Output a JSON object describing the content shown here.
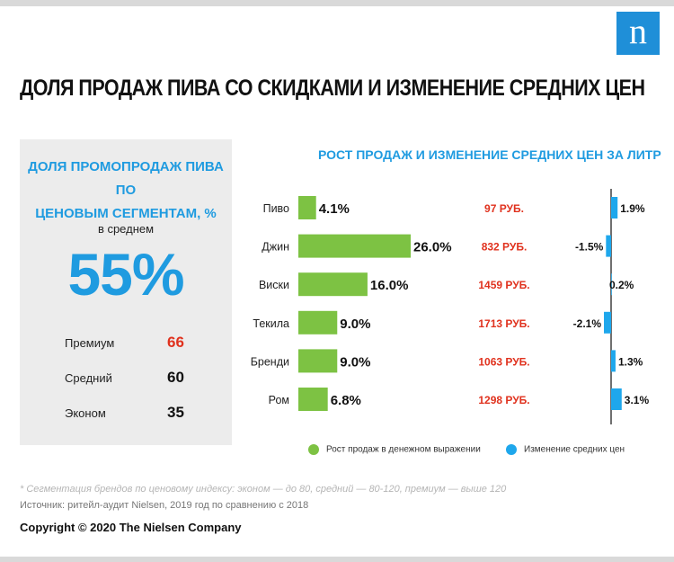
{
  "logo": {
    "letter": "n"
  },
  "title": "ДОЛЯ ПРОДАЖ ПИВА СО СКИДКАМИ И ИЗМЕНЕНИЕ СРЕДНИХ ЦЕН",
  "left_panel": {
    "title_line1": "ДОЛЯ ПРОМОПРОДАЖ ПИВА ПО",
    "title_line2": "ЦЕНОВЫМ СЕГМЕНТАМ, %",
    "avg_label": "в среднем",
    "avg_value": "55%",
    "segments": [
      {
        "name": "Премиум",
        "value": "66",
        "color": "#e0321e"
      },
      {
        "name": "Средний",
        "value": "60",
        "color": "#111111"
      },
      {
        "name": "Эконом",
        "value": "35",
        "color": "#111111"
      }
    ]
  },
  "right_title": "РОСТ ПРОДАЖ И ИЗМЕНЕНИЕ СРЕДНИХ ЦЕН ЗА ЛИТР",
  "chart_data": {
    "type": "bar",
    "categories": [
      "Пиво",
      "Джин",
      "Виски",
      "Текила",
      "Бренди",
      "Ром"
    ],
    "series": [
      {
        "name": "Рост продаж в денежном выражении",
        "values": [
          4.1,
          26.0,
          16.0,
          9.0,
          9.0,
          6.8
        ],
        "labels": [
          "4.1%",
          "26.0%",
          "16.0%",
          "9.0%",
          "9.0%",
          "6.8%"
        ],
        "color": "#7dc243"
      },
      {
        "name": "Изменение средних цен",
        "values": [
          1.9,
          -1.5,
          0.2,
          -2.1,
          1.3,
          3.1
        ],
        "labels": [
          "1.9%",
          "-1.5%",
          "0.2%",
          "-2.1%",
          "1.3%",
          "3.1%"
        ],
        "color": "#1ea7ec"
      }
    ],
    "prices": [
      "97 РУБ.",
      "832 РУБ.",
      "1459 РУБ.",
      "1713 РУБ.",
      "1063 РУБ.",
      "1298 РУБ."
    ],
    "price_color": "#e0321e",
    "xlim_sales": [
      0,
      26
    ],
    "xlim_price": [
      -3,
      3.5
    ],
    "legend": "bottom"
  },
  "footnote": "* Сегментация брендов по ценовому индексу: эконом — до 80, средний — 80-120, премиум — выше 120",
  "source": "Источник: ритейл-аудит Nielsen, 2019 год по сравнению с 2018",
  "copyright": "Copyright © 2020 The Nielsen Company"
}
